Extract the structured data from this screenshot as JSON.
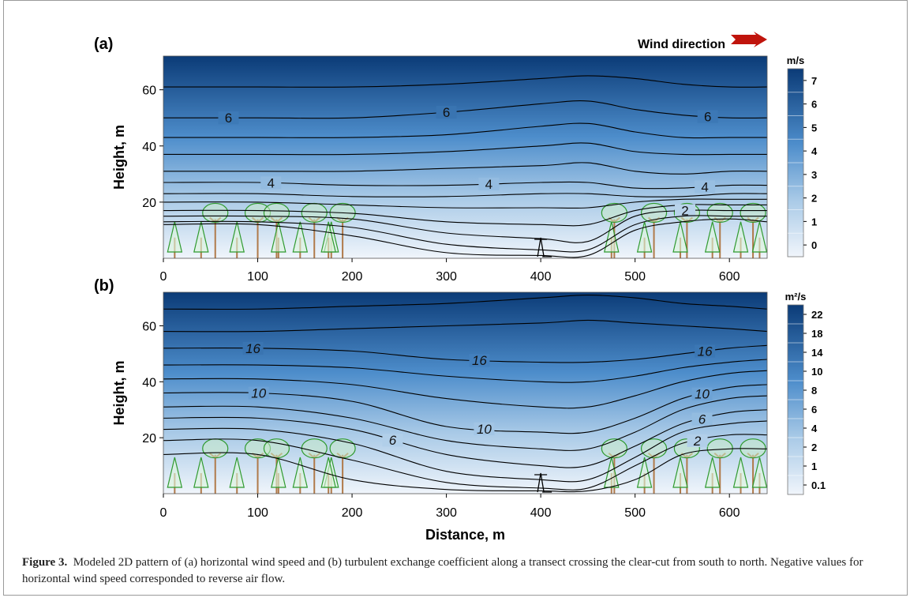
{
  "figure": {
    "caption_label": "Figure 3.",
    "caption_text": "Modeled 2D pattern of (a) horizontal wind speed and (b) turbulent exchange coefficient along a transect crossing the clear-cut from south to north. Negative values for horizontal wind speed corresponded to reverse air flow."
  },
  "chart_data": [
    {
      "type": "contour",
      "panel_label": "(a)",
      "annotation": "Wind direction",
      "y_label": "Height, m",
      "xlim": [
        0,
        640
      ],
      "xticks": [
        0,
        100,
        200,
        300,
        400,
        500,
        600
      ],
      "ylim": [
        0,
        72
      ],
      "yticks": [
        20,
        40,
        60
      ],
      "colorbar": {
        "units": "m/s",
        "ticks": [
          7,
          6,
          5,
          4,
          3,
          2,
          1,
          0
        ]
      },
      "x": [
        0,
        100,
        200,
        300,
        400,
        450,
        500,
        550,
        600,
        640
      ],
      "contours": [
        {
          "level": 6.5,
          "heights": [
            61,
            61,
            61,
            62,
            64,
            65,
            64,
            62,
            61,
            61
          ]
        },
        {
          "level": 6,
          "heights": [
            50,
            50,
            50,
            52,
            55,
            56,
            53,
            51,
            50,
            50
          ]
        },
        {
          "level": 5.5,
          "heights": [
            43,
            43,
            43,
            44,
            47,
            48,
            45,
            43,
            43,
            43
          ]
        },
        {
          "level": 5,
          "heights": [
            37,
            37,
            37,
            38,
            40,
            41,
            38,
            37,
            37,
            37
          ]
        },
        {
          "level": 4.5,
          "heights": [
            31,
            31,
            31,
            32,
            33,
            34,
            31,
            30,
            31,
            31
          ]
        },
        {
          "level": 4,
          "heights": [
            27,
            27,
            26,
            26,
            27,
            27,
            25,
            25,
            26,
            26
          ]
        },
        {
          "level": 3.5,
          "heights": [
            23,
            23,
            22,
            22,
            23,
            23,
            22,
            22,
            23,
            23
          ]
        },
        {
          "level": 3,
          "heights": [
            20,
            20,
            19,
            18,
            18,
            18,
            20,
            21,
            21,
            21
          ]
        },
        {
          "level": 2.5,
          "heights": [
            17,
            17,
            16,
            13,
            12,
            12,
            17,
            19,
            19,
            19
          ]
        },
        {
          "level": 2,
          "heights": [
            15,
            15,
            14,
            9,
            7,
            6,
            15,
            17,
            17,
            17
          ]
        },
        {
          "level": 1.5,
          "heights": [
            13,
            13,
            11,
            5,
            3,
            3,
            12,
            15,
            15,
            15
          ]
        },
        {
          "level": 1,
          "heights": [
            12,
            12,
            8,
            2,
            1,
            1,
            10,
            13,
            14,
            13
          ]
        }
      ]
    },
    {
      "type": "contour",
      "panel_label": "(b)",
      "y_label": "Height, m",
      "x_label": "Distance, m",
      "xlim": [
        0,
        640
      ],
      "xticks": [
        0,
        100,
        200,
        300,
        400,
        500,
        600
      ],
      "ylim": [
        0,
        72
      ],
      "yticks": [
        20,
        40,
        60
      ],
      "colorbar": {
        "units": "m²/s",
        "ticks": [
          22,
          18,
          14,
          10,
          8,
          6,
          4,
          2,
          1,
          0.1
        ]
      },
      "x": [
        0,
        100,
        200,
        300,
        400,
        450,
        500,
        550,
        600,
        640
      ],
      "contours": [
        {
          "level": 20,
          "heights": [
            66,
            66,
            67,
            68,
            70,
            71,
            70,
            68,
            67,
            66
          ]
        },
        {
          "level": 18,
          "heights": [
            58,
            58,
            59,
            60,
            61,
            62,
            61,
            60,
            59,
            58
          ]
        },
        {
          "level": 16,
          "heights": [
            52,
            52,
            51,
            48,
            47,
            47,
            48,
            50,
            52,
            53
          ]
        },
        {
          "level": 14,
          "heights": [
            46,
            46,
            45,
            42,
            40,
            40,
            42,
            45,
            47,
            48
          ]
        },
        {
          "level": 12,
          "heights": [
            41,
            41,
            39,
            34,
            31,
            31,
            35,
            40,
            43,
            44
          ]
        },
        {
          "level": 10,
          "heights": [
            36,
            36,
            33,
            24,
            22,
            22,
            27,
            34,
            38,
            39
          ]
        },
        {
          "level": 8,
          "heights": [
            31,
            31,
            27,
            19,
            16,
            16,
            22,
            30,
            34,
            35
          ]
        },
        {
          "level": 6,
          "heights": [
            27,
            27,
            23,
            14,
            10,
            10,
            17,
            25,
            29,
            30
          ]
        },
        {
          "level": 4,
          "heights": [
            23,
            23,
            18,
            8,
            5,
            5,
            13,
            22,
            25,
            26
          ]
        },
        {
          "level": 2,
          "heights": [
            19,
            19,
            12,
            4,
            2,
            2,
            10,
            18,
            21,
            21
          ]
        },
        {
          "level": 1,
          "heights": [
            14,
            14,
            5,
            1.5,
            1,
            1,
            5,
            14,
            16,
            16
          ]
        }
      ]
    }
  ]
}
